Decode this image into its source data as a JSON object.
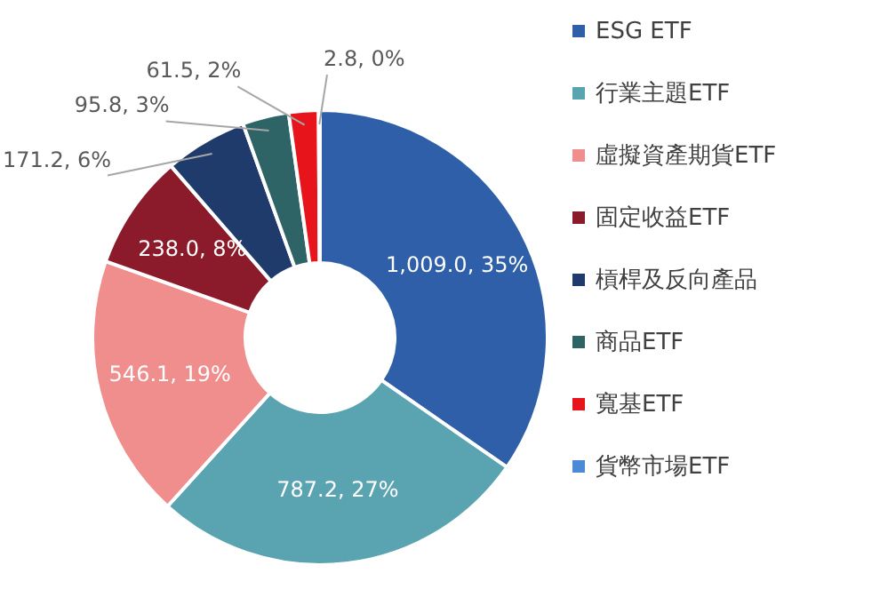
{
  "chart_data": {
    "type": "donut",
    "categories": [
      "ESG ETF",
      "行業主題ETF",
      "虛擬資產期貨ETF",
      "固定收益ETF",
      "槓桿及反向產品",
      "商品ETF",
      "寬基ETF",
      "貨幣市場ETF"
    ],
    "values": [
      1009.0,
      787.2,
      546.1,
      238.0,
      171.2,
      95.8,
      61.5,
      2.8
    ],
    "colors": [
      "#2e5fa8",
      "#5aa3b0",
      "#f08e8e",
      "#8b1a2a",
      "#1f3b6b",
      "#2f6466",
      "#e8141c",
      "#4a8ad6"
    ],
    "value_labels": [
      "1,009.0, 35%",
      "787.2, 27%",
      "546.1, 19%",
      "238.0, 8%",
      "171.2, 6%",
      "95.8, 3%",
      "61.5, 2%",
      "2.8, 0%"
    ],
    "legend": "right"
  }
}
